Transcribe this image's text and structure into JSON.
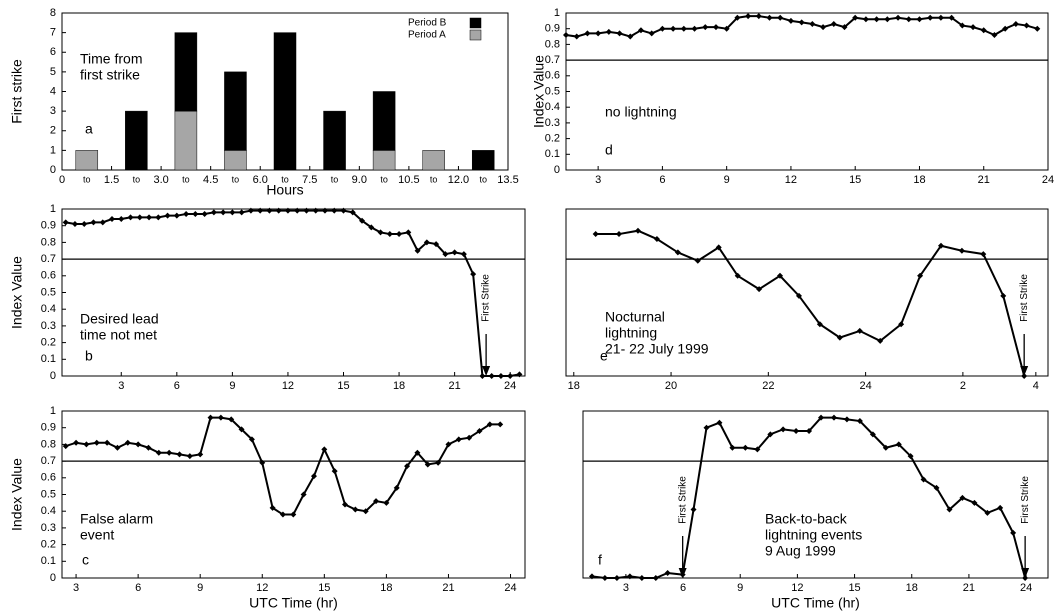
{
  "chart_data": [
    {
      "type": "bar",
      "ylabel": "First strike",
      "xlabel": "Hours",
      "notes": [
        "Time from",
        "first strike"
      ],
      "label": "a",
      "categories": [
        "to",
        "to",
        "to",
        "to",
        "to",
        "to",
        "to",
        "to",
        "to"
      ],
      "series": [
        {
          "name": "Period A",
          "color": "#a6a6a6",
          "values": [
            1,
            0,
            3,
            1,
            0,
            0,
            1,
            1,
            0
          ]
        },
        {
          "name": "Period B",
          "color": "#000000",
          "values": [
            0,
            3,
            4,
            4,
            7,
            3,
            3,
            0,
            1
          ]
        }
      ],
      "xlim": [
        0,
        13.5
      ],
      "xticks": [
        0,
        1.5,
        {
          "value": 3,
          "label": "3.0"
        },
        4.5,
        {
          "value": 6,
          "label": "6.0"
        },
        7.5,
        {
          "value": 9,
          "label": "9.0"
        },
        10.5,
        {
          "value": 12,
          "label": "12.0"
        },
        13.5
      ],
      "ylim": [
        0,
        8
      ],
      "yticks": [
        0,
        1,
        2,
        3,
        4,
        5,
        6,
        7,
        8
      ],
      "legend": "upper right"
    },
    {
      "type": "line",
      "ylabel": "Index Value",
      "notes": [
        "no lightning"
      ],
      "label": "d",
      "threshold": 0.7,
      "x": [
        1.5,
        2,
        2.5,
        3,
        3.5,
        4,
        4.5,
        5,
        5.5,
        6,
        6.5,
        7,
        7.5,
        8,
        8.5,
        9,
        9.5,
        10,
        10.5,
        11,
        11.5,
        12,
        12.5,
        13,
        13.5,
        14,
        14.5,
        15,
        15.5,
        16,
        16.5,
        17,
        17.5,
        18,
        18.5,
        19,
        19.5,
        20,
        20.5,
        21,
        21.5,
        22,
        22.5,
        23,
        23.5
      ],
      "values": [
        0.86,
        0.85,
        0.87,
        0.87,
        0.88,
        0.87,
        0.85,
        0.89,
        0.87,
        0.9,
        0.9,
        0.9,
        0.9,
        0.91,
        0.91,
        0.9,
        0.97,
        0.98,
        0.98,
        0.97,
        0.97,
        0.95,
        0.94,
        0.93,
        0.91,
        0.93,
        0.91,
        0.97,
        0.96,
        0.96,
        0.96,
        0.97,
        0.96,
        0.96,
        0.97,
        0.97,
        0.97,
        0.92,
        0.91,
        0.89,
        0.86,
        0.9,
        0.93,
        0.92,
        0.9
      ],
      "xlim": [
        1.5,
        24
      ],
      "xticks": [
        3,
        6,
        9,
        12,
        15,
        18,
        21,
        24
      ],
      "ylim": [
        0,
        1
      ],
      "yticks": [
        0,
        0.1,
        0.2,
        0.3,
        0.4,
        0.5,
        0.6,
        0.7,
        0.8,
        0.9,
        1
      ]
    },
    {
      "type": "line",
      "ylabel": "Index Value",
      "notes": [
        "Desired lead",
        "time not met"
      ],
      "label": "b",
      "threshold": 0.7,
      "annotations": [
        {
          "text": "First Strike",
          "x": 22.7
        }
      ],
      "x": [
        0,
        0.5,
        1,
        1.5,
        2,
        2.5,
        3,
        3.5,
        4,
        4.5,
        5,
        5.5,
        6,
        6.5,
        7,
        7.5,
        8,
        8.5,
        9,
        9.5,
        10,
        10.5,
        11,
        11.5,
        12,
        12.5,
        13,
        13.5,
        14,
        14.5,
        15,
        15.5,
        16,
        16.5,
        17,
        17.5,
        18,
        18.5,
        19,
        19.5,
        20,
        20.5,
        21,
        21.5,
        22,
        22.5,
        23,
        23.5,
        24,
        24.5
      ],
      "values": [
        0.92,
        0.91,
        0.91,
        0.92,
        0.92,
        0.94,
        0.94,
        0.95,
        0.95,
        0.95,
        0.95,
        0.96,
        0.96,
        0.97,
        0.97,
        0.97,
        0.98,
        0.98,
        0.98,
        0.98,
        0.99,
        0.99,
        0.99,
        0.99,
        0.99,
        0.99,
        0.99,
        0.99,
        0.99,
        0.99,
        0.99,
        0.98,
        0.93,
        0.89,
        0.86,
        0.85,
        0.85,
        0.86,
        0.75,
        0.8,
        0.79,
        0.73,
        0.74,
        0.73,
        0.61,
        0,
        0,
        0,
        0,
        0.01
      ],
      "xlim": [
        -0.2,
        24.8
      ],
      "xticks": [
        3,
        6,
        9,
        12,
        15,
        18,
        21,
        24
      ],
      "ylim": [
        0,
        1
      ],
      "yticks": [
        0,
        0.1,
        0.2,
        0.3,
        0.4,
        0.5,
        0.6,
        0.7,
        0.8,
        0.9,
        1
      ]
    },
    {
      "type": "line",
      "notes": [
        "Nocturnal",
        "lightning",
        "21- 22 July 1999"
      ],
      "label": "e",
      "threshold": 0.7,
      "annotations": [
        {
          "text": "First Strike",
          "x": 27.26
        }
      ],
      "x": [
        18.45,
        18.93,
        19.32,
        19.71,
        20.14,
        20.55,
        20.98,
        21.37,
        21.81,
        22.24,
        22.63,
        23.06,
        23.47,
        23.88,
        24.3,
        24.73,
        25.12,
        25.55,
        25.98,
        26.42,
        26.83,
        27.26
      ],
      "values": [
        0.85,
        0.85,
        0.87,
        0.82,
        0.74,
        0.69,
        0.77,
        0.6,
        0.52,
        0.6,
        0.48,
        0.31,
        0.23,
        0.27,
        0.21,
        0.31,
        0.6,
        0.78,
        0.75,
        0.73,
        0.48,
        0
      ],
      "xlim": [
        17.84,
        27.75
      ],
      "xticks": [
        18,
        20,
        22,
        24,
        {
          "value": 26,
          "label": "2"
        },
        {
          "value": 27.5,
          "label": "4"
        }
      ],
      "ylim": [
        0,
        1
      ]
    },
    {
      "type": "line",
      "ylabel": "Index Value",
      "xlabel": "UTC Time (hr)",
      "notes": [
        "False alarm",
        "event"
      ],
      "label": "c",
      "threshold": 0.7,
      "x": [
        2.5,
        3,
        3.5,
        4,
        4.5,
        5,
        5.5,
        6,
        6.5,
        7,
        7.5,
        8,
        8.5,
        9,
        9.5,
        10,
        10.5,
        11,
        11.5,
        12,
        12.5,
        13,
        13.5,
        14,
        14.5,
        15,
        15.5,
        16,
        16.5,
        17,
        17.5,
        18,
        18.5,
        19,
        19.5,
        20,
        20.5,
        21,
        21.5,
        22,
        22.5,
        23,
        23.5
      ],
      "values": [
        0.79,
        0.81,
        0.8,
        0.81,
        0.81,
        0.78,
        0.81,
        0.8,
        0.78,
        0.75,
        0.75,
        0.74,
        0.73,
        0.74,
        0.96,
        0.96,
        0.95,
        0.89,
        0.83,
        0.69,
        0.42,
        0.38,
        0.38,
        0.5,
        0.61,
        0.77,
        0.64,
        0.44,
        0.41,
        0.4,
        0.46,
        0.45,
        0.54,
        0.67,
        0.75,
        0.68,
        0.69,
        0.8,
        0.83,
        0.84,
        0.88,
        0.92,
        0.92
      ],
      "xlim": [
        2.32,
        24.7
      ],
      "xticks": [
        3,
        6,
        9,
        12,
        15,
        18,
        21,
        24
      ],
      "ylim": [
        0,
        1
      ],
      "yticks": [
        0,
        0.1,
        0.2,
        0.3,
        0.4,
        0.5,
        0.6,
        0.7,
        0.8,
        0.9,
        1
      ]
    },
    {
      "type": "line",
      "xlabel": "UTC Time (hr)",
      "notes": [
        "Back-to-back",
        "lightning events",
        "9 Aug 1999"
      ],
      "label": "f",
      "threshold": 0.7,
      "annotations": [
        {
          "text": "First Strike",
          "x": 5.98
        },
        {
          "text": "First Strike",
          "x": 23.95
        }
      ],
      "x": [
        1.22,
        1.9,
        2.53,
        3.21,
        3.84,
        4.57,
        5.19,
        5.98,
        6.55,
        7.23,
        7.91,
        8.59,
        9.27,
        9.9,
        10.58,
        11.25,
        11.93,
        12.61,
        13.24,
        13.92,
        14.6,
        15.28,
        15.96,
        16.64,
        17.32,
        17.94,
        18.62,
        19.3,
        19.98,
        20.66,
        21.29,
        21.97,
        22.64,
        23.32,
        23.95
      ],
      "values": [
        0.01,
        0,
        0,
        0.01,
        0,
        0,
        0.03,
        0.02,
        0.41,
        0.9,
        0.93,
        0.78,
        0.78,
        0.77,
        0.86,
        0.89,
        0.88,
        0.88,
        0.96,
        0.96,
        0.95,
        0.94,
        0.86,
        0.78,
        0.8,
        0.73,
        0.59,
        0.54,
        0.41,
        0.48,
        0.45,
        0.39,
        0.42,
        0.27,
        0
      ],
      "xlim": [
        0.75,
        25.15
      ],
      "xticks": [
        3,
        6,
        9,
        12,
        15,
        18,
        21,
        24
      ],
      "ylim": [
        0,
        1
      ]
    }
  ]
}
